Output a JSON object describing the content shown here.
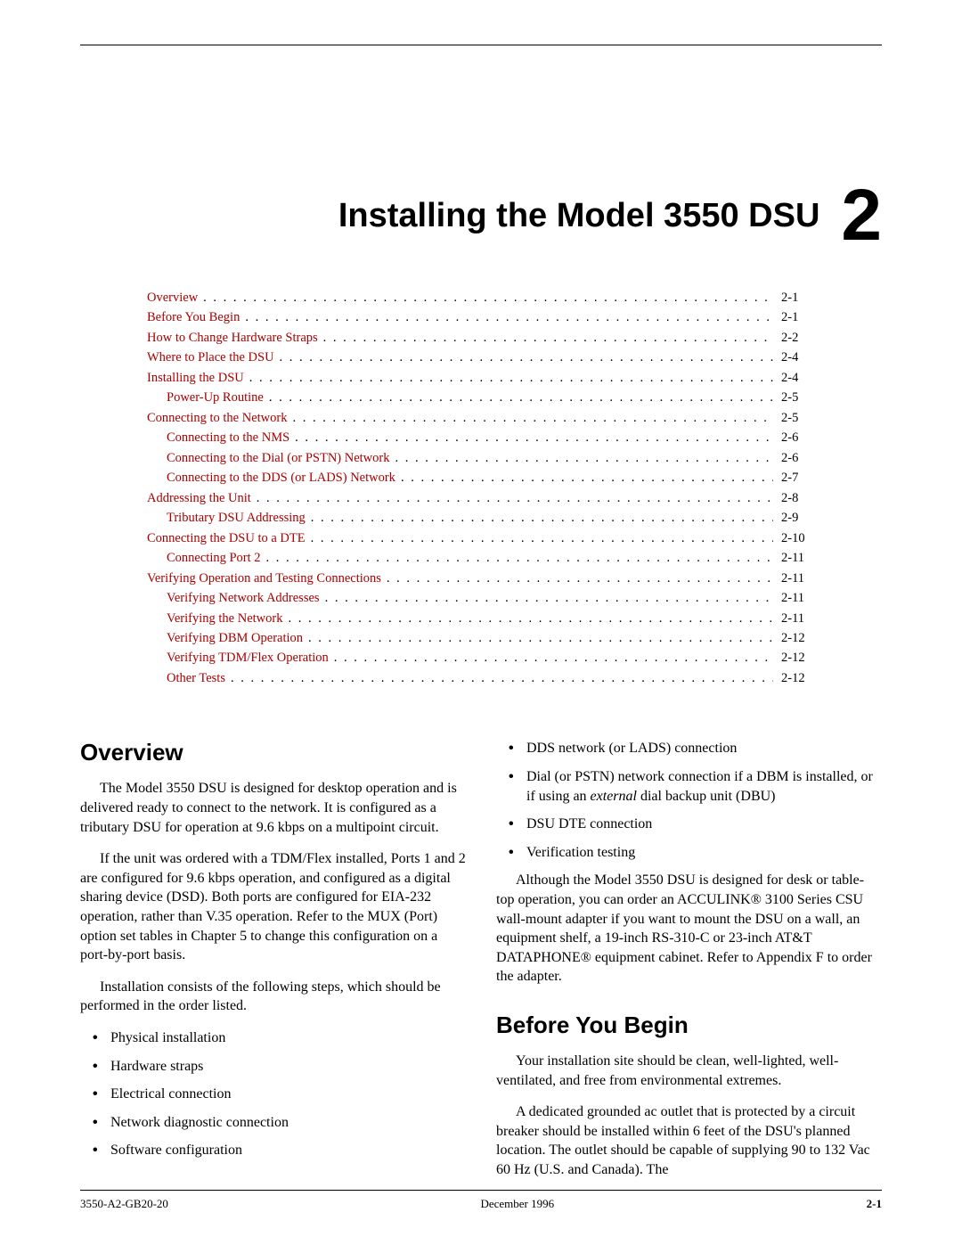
{
  "colors": {
    "link": "#aa0000",
    "text": "#000000",
    "background": "#ffffff"
  },
  "typography": {
    "body_family": "Times New Roman",
    "heading_family": "Arial",
    "chapter_title_size_pt": 29,
    "chapter_number_size_pt": 62,
    "h2_size_pt": 20,
    "body_size_pt": 12,
    "toc_size_pt": 11,
    "footer_size_pt": 10
  },
  "chapter": {
    "title": "Installing the Model 3550 DSU",
    "number": "2"
  },
  "toc": [
    {
      "label": "Overview",
      "page": "2-1",
      "indent": 0,
      "link": true
    },
    {
      "label": "Before You Begin",
      "page": "2-1",
      "indent": 0,
      "link": true
    },
    {
      "label": "How to Change Hardware Straps",
      "page": "2-2",
      "indent": 0,
      "link": true
    },
    {
      "label": "Where to Place the DSU",
      "page": "2-4",
      "indent": 0,
      "link": true
    },
    {
      "label": "Installing the DSU",
      "page": "2-4",
      "indent": 0,
      "link": true
    },
    {
      "label": "Power-Up Routine",
      "page": "2-5",
      "indent": 1,
      "link": true
    },
    {
      "label": "Connecting to the Network",
      "page": "2-5",
      "indent": 0,
      "link": true
    },
    {
      "label": "Connecting to the NMS",
      "page": "2-6",
      "indent": 1,
      "link": true
    },
    {
      "label": "Connecting to the Dial (or PSTN) Network",
      "page": "2-6",
      "indent": 1,
      "link": true
    },
    {
      "label": "Connecting to the DDS (or LADS) Network",
      "page": "2-7",
      "indent": 1,
      "link": true
    },
    {
      "label": "Addressing the Unit",
      "page": "2-8",
      "indent": 0,
      "link": true
    },
    {
      "label": "Tributary DSU Addressing",
      "page": "2-9",
      "indent": 1,
      "link": true
    },
    {
      "label": "Connecting the DSU to a DTE",
      "page": "2-10",
      "indent": 0,
      "link": true
    },
    {
      "label": "Connecting Port 2",
      "page": "2-11",
      "indent": 1,
      "link": true
    },
    {
      "label": "Verifying Operation and Testing Connections",
      "page": "2-11",
      "indent": 0,
      "link": true
    },
    {
      "label": "Verifying Network Addresses",
      "page": "2-11",
      "indent": 1,
      "link": true
    },
    {
      "label": "Verifying the Network",
      "page": "2-11",
      "indent": 1,
      "link": true
    },
    {
      "label": "Verifying DBM Operation",
      "page": "2-12",
      "indent": 1,
      "link": true
    },
    {
      "label": "Verifying TDM/Flex Operation",
      "page": "2-12",
      "indent": 1,
      "link": true
    },
    {
      "label": "Other Tests",
      "page": "2-12",
      "indent": 1,
      "link": true
    }
  ],
  "sections": {
    "overview": {
      "heading": "Overview",
      "p1": "The Model 3550 DSU is designed for desktop operation and is delivered ready to connect to the network. It is configured as a tributary DSU for operation at 9.6 kbps on a multipoint circuit.",
      "p2": "If the unit was ordered with a TDM/Flex installed, Ports 1 and 2 are configured for 9.6 kbps operation, and configured as a digital sharing device (DSD). Both ports are configured for EIA-232 operation, rather than V.35 operation. Refer to the MUX (Port) option set tables in Chapter 5 to change this configuration on a port-by-port basis.",
      "p3": "Installation consists of the following steps, which should be performed in the order listed.",
      "steps_left": [
        "Physical installation",
        "Hardware straps",
        "Electrical connection",
        "Network diagnostic connection",
        "Software configuration"
      ],
      "steps_right": [
        "DDS network (or LADS) connection",
        "Dial (or PSTN) network connection if a DBM is installed, or if using an external dial backup unit (DBU)",
        "DSU DTE connection",
        "Verification testing"
      ],
      "p4": "Although the Model 3550 DSU is designed for desk or table-top operation, you can order an ACCULINK® 3100 Series CSU wall-mount adapter if you want to mount the DSU on a wall, an equipment shelf, a 19-inch RS-310-C or 23-inch AT&T DATAPHONE® equipment cabinet. Refer to Appendix F to order the adapter."
    },
    "before": {
      "heading": "Before You Begin",
      "p1": "Your installation site should be clean, well-lighted, well-ventilated, and free from environmental extremes.",
      "p2": "A dedicated grounded ac outlet that is protected by a circuit breaker should be installed within 6 feet of the DSU's planned location. The outlet should be capable of supplying 90 to 132 Vac 60 Hz (U.S. and Canada). The"
    }
  },
  "footer": {
    "left": "3550-A2-GB20-20",
    "center": "December 1996",
    "right": "2-1"
  }
}
